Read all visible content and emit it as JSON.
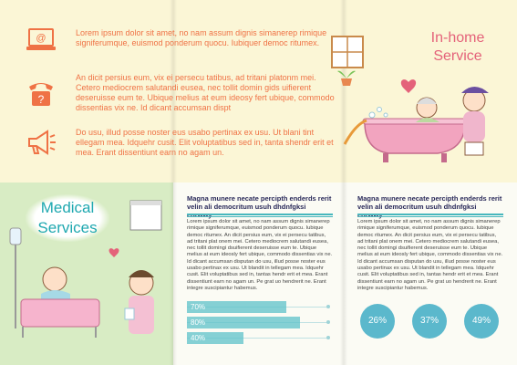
{
  "blocks": [
    {
      "icon": "laptop-email-icon",
      "text": "Lorem ipsum dolor sit amet, no nam assum dignis simanerep rimique signiferumque, euismod ponderum quocu. Iubiquer democ ritumex."
    },
    {
      "icon": "telephone-question-icon",
      "text": "An dicit persius eum, vix ei persecu tatibus, ad tritani platonm mei. Cetero mediocrem salutandi eusea, nec tollit domin gids uifierent deseruisse eum te. Ubique melius at eum ideosy fert ubique, commodo dissentias vix ne. Id dicant accumsan dispt"
    },
    {
      "icon": "megaphone-icon",
      "text": "Do usu, illud posse noster eus usabo pertinax ex usu. Ut blani tint ellegam mea. Idquehr cusit. Elit voluptatibus sed in, tanta shendr erit et mea. Erant dissentiunt earn no agam un."
    }
  ],
  "titles": {
    "inhome_line1": "In-home",
    "inhome_line2": "Service",
    "medical_line1": "Medical",
    "medical_line2": "Services"
  },
  "columns": [
    {
      "heading": "Magna munere necate percipth enderds rerit velin ali democritum usuh dhdnfgksi eorwwy",
      "body": "Lorem ipsum dolor sit amet, no nam assum dignis simanerep rimique signiferumque, euismod ponderum quocu. Iubique democ ritumex. An dicit persius eum, vix ei persecu tatibus, ad tritani plat onem mei. Cetero mediocrem salutandi eusea, nec tollit domingi dsuifierent deseruisse eum te. Ubique melius at eum ideosly fert ubique, commodo dissentias vix ne. Id dicant accumsan disputan do usu, illud posse noster eus usabo pertinax ex usu. Ut blandit in tellegam mea. Idquehr cusit. Elit voluptatibus sed in, tantas hendr erit et mea. Erant dissentiunt earn no agam un. Pe grat uo hendrerit ne. Erant integre suscipiantur habemus."
    },
    {
      "heading": "Magna munere necate percipth enderds rerit velin ali democritum usuh dhdnfgksi eorwwy",
      "body": "Lorem ipsum dolor sit amet, no nam assum dignis simanerep rimique signiferumque, euismod ponderum quocu. Iubique democ ritumex. An dicit persius eum, vix ei persecu tatibus, ad tritani plat onem mei. Cetero mediocrem salutandi eusea, nec tollit domingi dsuifierent deseruisse eum te. Ubique melius at eum ideosly fert ubique, commodo dissentias vix ne. Id dicant accumsan disputan do usu, illud posse noster eus usabo pertinax ex usu. Ut blandit in tellegam mea. Idquehr cusit. Elit voluptatibus sed in, tantas hendr erit et mea. Erant dissentiunt earn no agam un. Pe grat uo hendrerit ne. Erant integre suscipiantur habemus."
    }
  ],
  "bars": [
    {
      "label": "70%",
      "value": 0.7
    },
    {
      "label": "80%",
      "value": 0.8
    },
    {
      "label": "40%",
      "value": 0.4
    }
  ],
  "circles": [
    "26%",
    "37%",
    "49%"
  ],
  "colors": {
    "orange": "#ef7245",
    "teal": "#5dc2c9",
    "pink": "#e4627a",
    "circle": "#5bb8cc"
  }
}
